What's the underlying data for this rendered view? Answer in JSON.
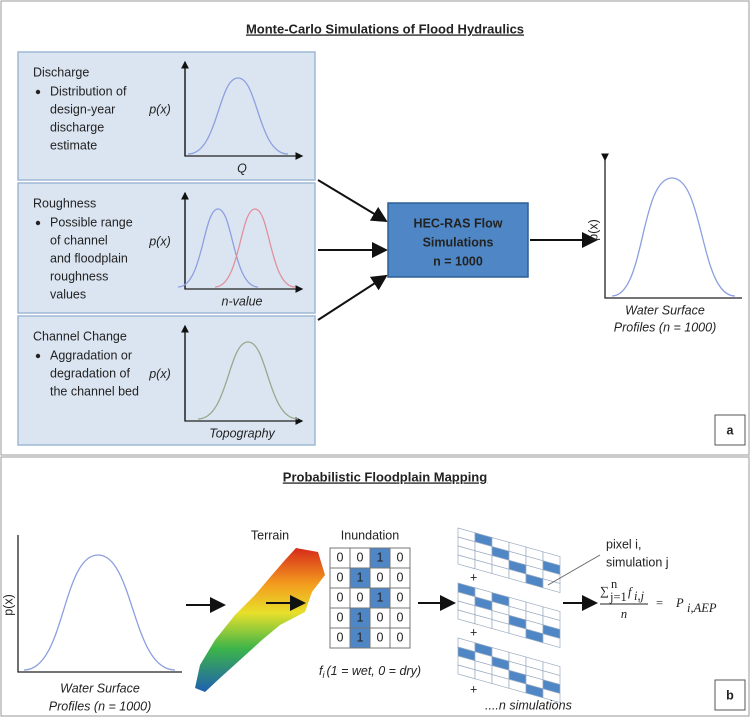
{
  "panel_a": {
    "title": "Monte-Carlo Simulations of Flood Hydraulics",
    "label": "a",
    "inputs": [
      {
        "title": "Discharge",
        "description": [
          "Distribution of",
          "design-year",
          "discharge",
          "estimate"
        ],
        "y_label": "p(x)",
        "x_label": "Q"
      },
      {
        "title": "Roughness",
        "description": [
          "Possible range",
          "of channel",
          "and floodplain",
          "roughness",
          "values"
        ],
        "y_label": "p(x)",
        "x_label": "n-value"
      },
      {
        "title": "Channel Change",
        "description": [
          "Aggradation or",
          "degradation of",
          "the channel bed"
        ],
        "y_label": "p(x)",
        "x_label": "Topography"
      }
    ],
    "model": [
      "HEC-RAS Flow",
      "Simulations",
      "n = 1000"
    ],
    "output": {
      "y_label": "p(x)",
      "x_label": [
        "Water Surface",
        "Profiles (n = 1000)"
      ]
    }
  },
  "panel_b": {
    "title": "Probabilistic Floodplain Mapping",
    "label": "b",
    "profiles": {
      "y_label": "p(x)",
      "x_label": [
        "Water Surface",
        "Profiles (n = 1000)"
      ]
    },
    "terrain": "Terrain",
    "inundation": {
      "title": "Inundation",
      "rows": [
        [
          "0",
          "0",
          "1",
          "0"
        ],
        [
          "0",
          "1",
          "0",
          "0"
        ],
        [
          "0",
          "0",
          "1",
          "0"
        ],
        [
          "0",
          "1",
          "0",
          "0"
        ],
        [
          "0",
          "1",
          "0",
          "0"
        ]
      ],
      "caption": {
        "symbol": "f",
        "subscript": "i",
        "text": "(1 = wet, 0 = dry)"
      }
    },
    "simulations": {
      "pixel_label": [
        "pixel i,",
        "simulation j"
      ],
      "plus_signs": [
        "+",
        "+",
        "+"
      ],
      "caption": "....n simulations"
    },
    "formula": {
      "sum": "∑",
      "upper": "n",
      "lower": "j=1",
      "term": "f",
      "term_sub": "i,j",
      "denominator": "n",
      "equals": "=",
      "result": "P",
      "result_sub": "i,AEP"
    }
  }
}
